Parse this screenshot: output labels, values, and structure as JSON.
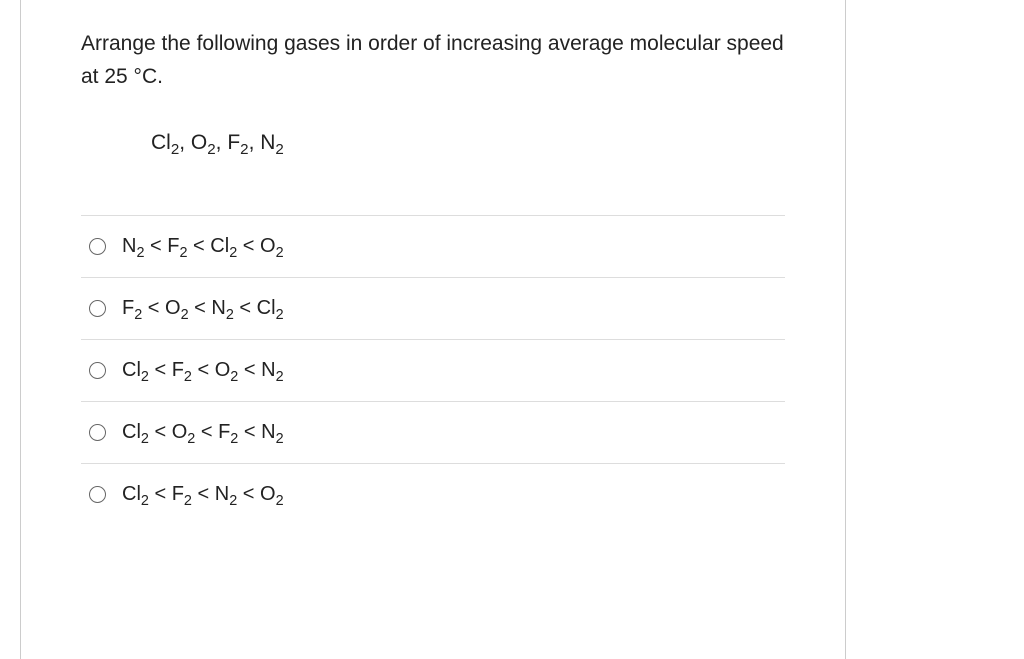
{
  "colors": {
    "text": "#222222",
    "border": "#cccccc",
    "divider": "#dddddd",
    "radioBorder": "#666666",
    "background": "#ffffff"
  },
  "typography": {
    "fontFamily": "Segoe UI, Arial, sans-serif",
    "questionFontSize": 21,
    "optionFontSize": 20
  },
  "question": {
    "prompt": "Arrange the following gases in order of increasing average molecular speed at 25 °C.",
    "given_html": "Cl<sub>2</sub>, O<sub>2</sub>, F<sub>2</sub>, N<sub>2</sub>"
  },
  "options": [
    {
      "html": "N<sub>2</sub> < F<sub>2</sub> < Cl<sub>2</sub> < O<sub>2</sub>"
    },
    {
      "html": "F<sub>2</sub> < O<sub>2</sub> < N<sub>2</sub> < Cl<sub>2</sub>"
    },
    {
      "html": "Cl<sub>2</sub> < F<sub>2</sub> < O<sub>2</sub> < N<sub>2</sub>"
    },
    {
      "html": "Cl<sub>2</sub> < O<sub>2</sub> < F<sub>2</sub> < N<sub>2</sub>"
    },
    {
      "html": "Cl<sub>2</sub> < F<sub>2</sub> < N<sub>2</sub> < O<sub>2</sub>"
    }
  ]
}
